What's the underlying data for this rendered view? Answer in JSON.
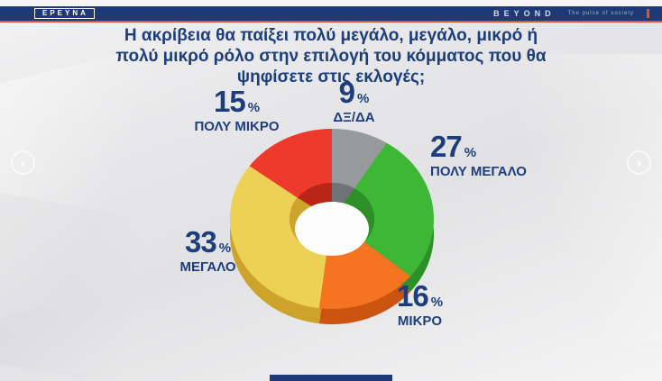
{
  "header": {
    "badge": "ΕΡΕΥΝΑ",
    "brand": "BEYOND",
    "tagline": "The pulse of society"
  },
  "title": "Η ακρίβεια θα παίξει πολύ μεγάλο, μεγάλο, μικρό ή πολύ μικρό ρόλο στην επιλογή του κόμματος που θα ψηφίσετε στις εκλογές;",
  "carousel": {
    "prev_glyph": "‹",
    "next_glyph": "›"
  },
  "colors": {
    "header_navy": "#1e3a76",
    "accent_orange": "#e0552a",
    "label_navy": "#1c3e7d"
  },
  "chart_data": {
    "type": "pie",
    "variant": "3d-donut",
    "title": "Η ακρίβεια θα παίξει πολύ μεγάλο, μεγάλο, μικρό ή πολύ μικρό ρόλο στην επιλογή του κόμματος που θα ψηφίσετε στις εκλογές;",
    "unit": "%",
    "start_angle_deg": 0,
    "direction": "clockwise",
    "slices": [
      {
        "label": "ΔΞ/ΔΑ",
        "value": 9,
        "color": "#97999b",
        "side_color": "#707275"
      },
      {
        "label": "ΠΟΛΥ ΜΕΓΑΛΟ",
        "value": 27,
        "color": "#3eb737",
        "side_color": "#2c8f27"
      },
      {
        "label": "ΜΙΚΡΟ",
        "value": 16,
        "color": "#f4741f",
        "side_color": "#cb5510"
      },
      {
        "label": "ΜΕΓΑΛΟ",
        "value": 33,
        "color": "#edd056",
        "side_color": "#cda32c"
      },
      {
        "label": "ΠΟΛΥ ΜΙΚΡΟ",
        "value": 15,
        "color": "#ee3a2a",
        "side_color": "#b92517"
      }
    ]
  }
}
